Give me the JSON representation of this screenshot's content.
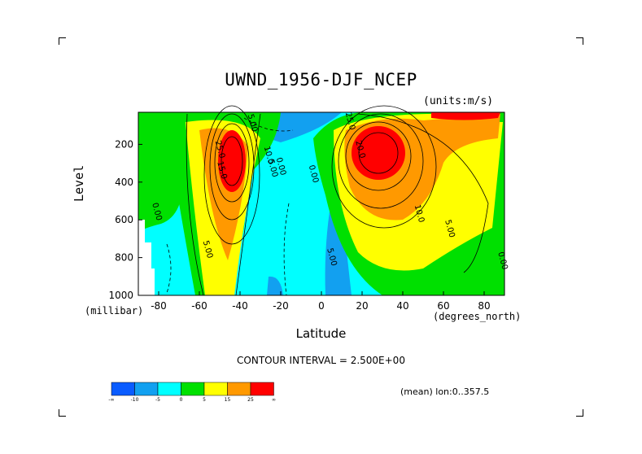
{
  "chart_data": {
    "type": "heatmap",
    "title": "UWND_1956-DJF_NCEP",
    "units_label": "(units:m/s)",
    "xlabel": "Latitude",
    "ylabel": "Level",
    "x_unit_label": "(degrees_north)",
    "y_unit_label": "(millibar)",
    "xlim": [
      -90,
      90
    ],
    "ylim": [
      1000,
      30
    ],
    "x_ticks": [
      "-80",
      "-60",
      "-40",
      "-20",
      "0",
      "20",
      "40",
      "60",
      "80"
    ],
    "x_tick_values": [
      -80,
      -60,
      -40,
      -20,
      0,
      20,
      40,
      60,
      80
    ],
    "y_ticks": [
      "200",
      "400",
      "600",
      "800",
      "1000"
    ],
    "y_tick_values": [
      200,
      400,
      600,
      800,
      1000
    ],
    "contour_interval_text": "CONTOUR INTERVAL = 2.500E+00",
    "mean_text": "(mean) lon:0..357.5",
    "colorbar": {
      "levels": [
        "-∞",
        "-10",
        "-5",
        "0",
        "5",
        "15",
        "25",
        "∞"
      ],
      "colors": [
        "#0a5cff",
        "#12a0f0",
        "#00ffff",
        "#00e000",
        "#ffff00",
        "#ff9900",
        "#ff0000"
      ]
    },
    "contour_labels": [
      {
        "text": "0.00",
        "lat": -82,
        "lev": 560
      },
      {
        "text": "5.00",
        "lat": -57,
        "lev": 760
      },
      {
        "text": "25.0",
        "lat": -51,
        "lev": 230
      },
      {
        "text": "15.0",
        "lat": -50,
        "lev": 340
      },
      {
        "text": "5.00",
        "lat": -35,
        "lev": 90
      },
      {
        "text": "10.0",
        "lat": -27,
        "lev": 260
      },
      {
        "text": "5.00",
        "lat": -25,
        "lev": 330
      },
      {
        "text": "0.00",
        "lat": -21,
        "lev": 320
      },
      {
        "text": "0.00",
        "lat": -5,
        "lev": 360
      },
      {
        "text": "5.00",
        "lat": 4,
        "lev": 800
      },
      {
        "text": "25.0",
        "lat": 13,
        "lev": 80
      },
      {
        "text": "20.0",
        "lat": 18,
        "lev": 230
      },
      {
        "text": "10.0",
        "lat": 47,
        "lev": 570
      },
      {
        "text": "5.00",
        "lat": 62,
        "lev": 650
      },
      {
        "text": "0.00",
        "lat": 88,
        "lev": 820
      }
    ]
  }
}
